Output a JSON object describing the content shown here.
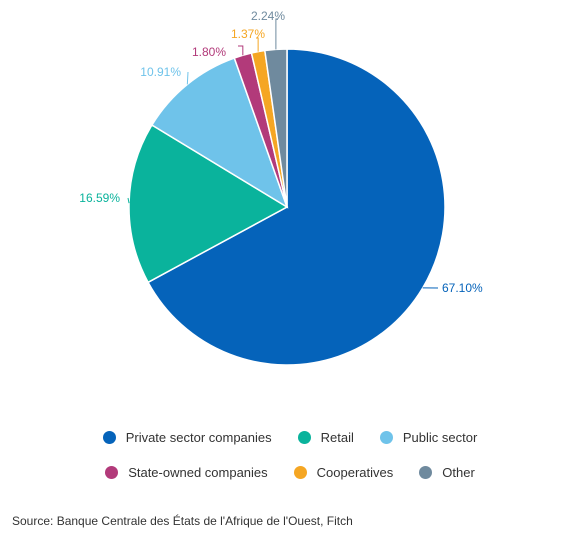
{
  "chart_data": {
    "type": "pie",
    "slices": [
      {
        "name": "Private sector companies",
        "value": 67.1,
        "label": "67.10%",
        "color": "#0563BA"
      },
      {
        "name": "Retail",
        "value": 16.59,
        "label": "16.59%",
        "color": "#0AB39C"
      },
      {
        "name": "Public sector",
        "value": 10.91,
        "label": "10.91%",
        "color": "#6FC3EA"
      },
      {
        "name": "State-owned companies",
        "value": 1.8,
        "label": "1.80%",
        "color": "#B23A7A"
      },
      {
        "name": "Cooperatives",
        "value": 1.37,
        "label": "1.37%",
        "color": "#F5A623"
      },
      {
        "name": "Other",
        "value": 2.24,
        "label": "2.24%",
        "color": "#6F8A9E"
      }
    ],
    "legend_placement": "bottom",
    "source": "Source: Banque Centrale des États de l'Afrique de l'Ouest, Fitch"
  }
}
